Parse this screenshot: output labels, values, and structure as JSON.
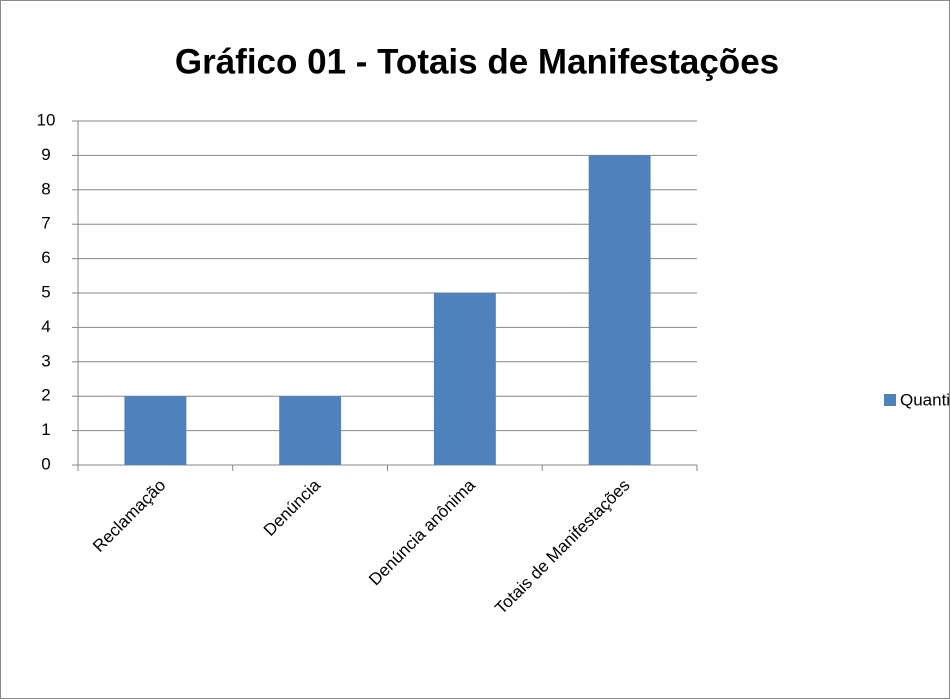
{
  "chart_data": {
    "type": "bar",
    "title": "Gráfico 01 - Totais de Manifestações",
    "categories": [
      "Reclamação",
      "Denúncia",
      "Denúncia anônima",
      "Totais de Manifestações"
    ],
    "series": [
      {
        "name": "Quantidade (nº)",
        "color": "#4f81bd",
        "values": [
          2,
          2,
          5,
          9
        ]
      }
    ],
    "ylim": [
      0,
      10
    ],
    "yticks": [
      0,
      1,
      2,
      3,
      4,
      5,
      6,
      7,
      8,
      9,
      10
    ],
    "grid": true,
    "legend": "right"
  }
}
